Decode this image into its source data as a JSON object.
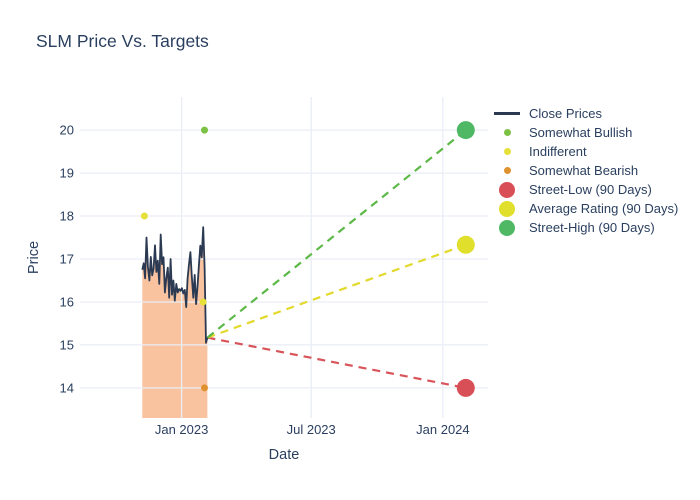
{
  "chart_data": {
    "type": "line",
    "title": "SLM Price Vs. Targets",
    "xlabel": "Date",
    "ylabel": "Price",
    "font_color": "#2a3f5f",
    "grid_color": "#e9eef5",
    "background": "#ffffff",
    "x_ticks": [
      {
        "label": "Jan 2023",
        "date": "2023-01-01"
      },
      {
        "label": "Jul 2023",
        "date": "2023-07-01"
      },
      {
        "label": "Jan 2024",
        "date": "2024-01-01"
      }
    ],
    "y_ticks": [
      14,
      15,
      16,
      17,
      18,
      19,
      20
    ],
    "x_range": [
      "2022-08-12",
      "2024-03-04"
    ],
    "y_range": [
      13.3,
      20.77
    ],
    "close_prices": {
      "label": "Close Prices",
      "line_color": "#2b3a52",
      "fill_color": "#f8b98f",
      "fill_opacity": 0.85,
      "start_date": "2022-11-07",
      "end_date": "2023-02-06",
      "values": [
        16.75,
        16.9,
        16.55,
        17.5,
        16.82,
        16.5,
        17.05,
        16.62,
        16.78,
        17.32,
        16.7,
        16.96,
        16.42,
        17.57,
        16.88,
        17.04,
        16.22,
        16.55,
        16.8,
        16.1,
        17.0,
        16.17,
        16.5,
        16.03,
        16.42,
        16.22,
        16.3,
        16.26,
        16.32,
        16.2,
        16.28,
        15.88,
        16.55,
        16.88,
        17.16,
        16.6,
        16.1,
        16.63,
        15.95,
        16.35,
        16.85,
        17.31,
        17.04,
        17.74,
        16.81,
        15.05,
        15.17
      ]
    },
    "analyst_ratings": [
      {
        "label": "Somewhat Bullish",
        "color": "#7cc143",
        "date": "2023-02-02",
        "price": 20
      },
      {
        "label": "Indifferent",
        "color": "#e6e13a",
        "date": "2022-11-10",
        "price": 18
      },
      {
        "label": "Indifferent",
        "color": "#e6e13a",
        "date": "2023-01-31",
        "price": 16
      },
      {
        "label": "Somewhat Bearish",
        "color": "#de9230",
        "date": "2023-02-02",
        "price": 14
      }
    ],
    "projection_origin": {
      "date": "2023-02-06",
      "price": 15.17
    },
    "price_targets": [
      {
        "label": "Street-Low (90 Days)",
        "color": "#d94f57",
        "dash_color": "#d8545a",
        "date": "2024-02-02",
        "price": 14.0
      },
      {
        "label": "Average Rating (90 Days)",
        "color": "#e0df2b",
        "dash_color": "#e3d92c",
        "date": "2024-02-02",
        "price": 17.33
      },
      {
        "label": "Street-High (90 Days)",
        "color": "#4fb865",
        "dash_color": "#5cb847",
        "date": "2024-02-02",
        "price": 20.0
      }
    ],
    "legend": [
      {
        "label": "Close Prices",
        "marker": "line",
        "size": 3,
        "color": "#2b3a52"
      },
      {
        "label": "Somewhat Bullish",
        "marker": "dot",
        "size": 7,
        "color": "#7cc143"
      },
      {
        "label": "Indifferent",
        "marker": "dot",
        "size": 7,
        "color": "#e6e13a"
      },
      {
        "label": "Somewhat Bearish",
        "marker": "dot",
        "size": 7,
        "color": "#de9230"
      },
      {
        "label": "Street-Low (90 Days)",
        "marker": "dot",
        "size": 16,
        "color": "#d94f57"
      },
      {
        "label": "Average Rating (90 Days)",
        "marker": "dot",
        "size": 16,
        "color": "#e0df2b"
      },
      {
        "label": "Street-High (90 Days)",
        "marker": "dot",
        "size": 16,
        "color": "#4fb865"
      }
    ]
  }
}
